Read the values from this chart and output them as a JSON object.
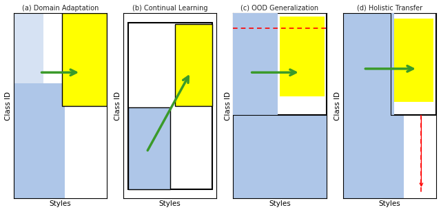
{
  "fig_width": 6.4,
  "fig_height": 3.08,
  "dpi": 100,
  "bg_color": "#ffffff",
  "panel_titles": [
    "(a) Domain Adaptation",
    "(b) Continual Learning",
    "(c) OOD Generalization",
    "(d) Holistic Transfer"
  ],
  "xlabel": "Styles",
  "ylabel": "Class ID",
  "light_blue": "#aec6e8",
  "yellow": "#ffff00",
  "white": "#ffffff",
  "green_arrow": "#3a9a2a",
  "red_dashed": "#ff0000",
  "black": "#000000",
  "dark_gray": "#222222"
}
